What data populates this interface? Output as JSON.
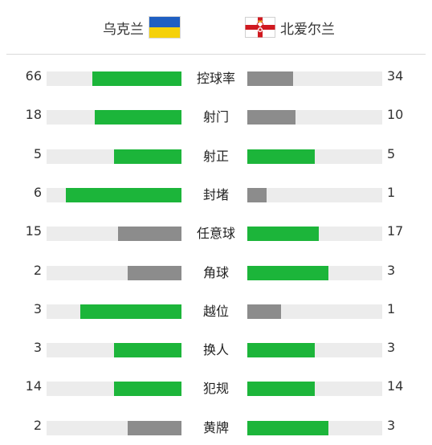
{
  "teams": {
    "home": {
      "name": "乌克兰",
      "flag_icon": "ukraine-flag-icon",
      "flag_colors": [
        "#1f5fc2",
        "#f5d10a"
      ]
    },
    "away": {
      "name": "北爱尔兰",
      "flag_icon": "northern-ireland-flag-icon"
    }
  },
  "colors": {
    "winner": "#1cb53a",
    "loser": "#8c8c8c",
    "track": "#ececec"
  },
  "stats": [
    {
      "label": "控球率",
      "home": "66",
      "away": "34",
      "home_fill": 0.66,
      "away_fill": 0.34,
      "home_color": "green",
      "away_color": "gray"
    },
    {
      "label": "射门",
      "home": "18",
      "away": "10",
      "home_fill": 0.643,
      "away_fill": 0.357,
      "home_color": "green",
      "away_color": "gray"
    },
    {
      "label": "射正",
      "home": "5",
      "away": "5",
      "home_fill": 0.5,
      "away_fill": 0.5,
      "home_color": "green",
      "away_color": "green"
    },
    {
      "label": "封堵",
      "home": "6",
      "away": "1",
      "home_fill": 0.857,
      "away_fill": 0.143,
      "home_color": "green",
      "away_color": "gray"
    },
    {
      "label": "任意球",
      "home": "15",
      "away": "17",
      "home_fill": 0.469,
      "away_fill": 0.531,
      "home_color": "gray",
      "away_color": "green"
    },
    {
      "label": "角球",
      "home": "2",
      "away": "3",
      "home_fill": 0.4,
      "away_fill": 0.6,
      "home_color": "gray",
      "away_color": "green"
    },
    {
      "label": "越位",
      "home": "3",
      "away": "1",
      "home_fill": 0.75,
      "away_fill": 0.25,
      "home_color": "green",
      "away_color": "gray"
    },
    {
      "label": "换人",
      "home": "3",
      "away": "3",
      "home_fill": 0.5,
      "away_fill": 0.5,
      "home_color": "green",
      "away_color": "green"
    },
    {
      "label": "犯规",
      "home": "14",
      "away": "14",
      "home_fill": 0.5,
      "away_fill": 0.5,
      "home_color": "green",
      "away_color": "green"
    },
    {
      "label": "黄牌",
      "home": "2",
      "away": "3",
      "home_fill": 0.4,
      "away_fill": 0.6,
      "home_color": "gray",
      "away_color": "green"
    }
  ]
}
